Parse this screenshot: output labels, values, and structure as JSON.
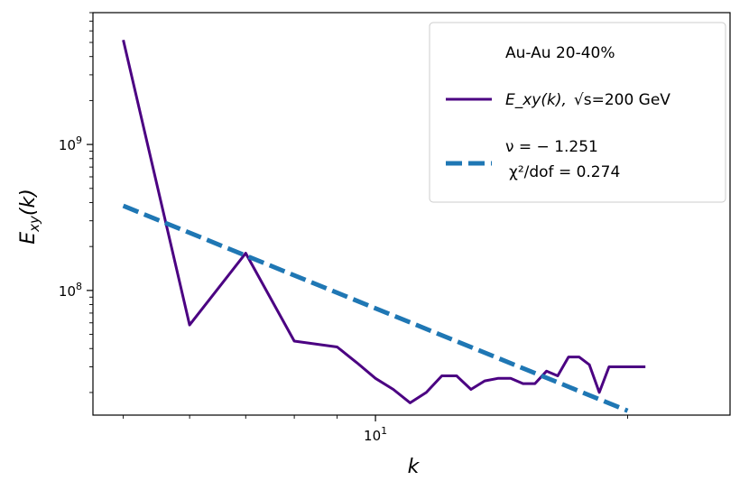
{
  "chart_data": {
    "type": "line",
    "xscale": "log",
    "yscale": "log",
    "xlabel": "k",
    "ylabel": "E_xy(k)",
    "xlim": [
      4.6,
      26.5
    ],
    "ylim": [
      14000000,
      8000000000
    ],
    "x_ticks": [
      {
        "value": 10,
        "mantissa": "10",
        "exp": "1"
      }
    ],
    "y_ticks": [
      {
        "value": 100000000,
        "mantissa": "10",
        "exp": "8"
      },
      {
        "value": 1000000000,
        "mantissa": "10",
        "exp": "9"
      }
    ],
    "grid": false,
    "legend_position": "top-right",
    "legend": {
      "title": "Au-Au  20-40%",
      "entries": [
        {
          "label_main": "E_xy(k),",
          "label_energy": "√s=200 GeV"
        },
        {
          "line1": "ν = − 1.251",
          "line2": "χ²/dof = 0.274"
        }
      ]
    },
    "colors": {
      "data": "#4b0082",
      "fit": "#1f77b4"
    },
    "series": [
      {
        "name": "E_xy(k),  √s=200 GeV",
        "style": "solid",
        "x": [
          5,
          6,
          7,
          8,
          9,
          9.5,
          10,
          10.5,
          11,
          11.5,
          12,
          12.5,
          13,
          13.5,
          14,
          14.5,
          15,
          15.5,
          16,
          16.5,
          17,
          17.5,
          18,
          18.5,
          19,
          19.5,
          20,
          20.5,
          21
        ],
        "y": [
          5200000000,
          58000000,
          180000000,
          45000000,
          41000000,
          32000000,
          25000000,
          21000000,
          17000000,
          20000000,
          26000000,
          26000000,
          21000000,
          24000000,
          25000000,
          25000000,
          23000000,
          23000000,
          28000000,
          26000000,
          35000000,
          35000000,
          31000000,
          20000000,
          30000000,
          30000000,
          30000000,
          30000000,
          30000000
        ]
      },
      {
        "name": "ν = − 1.251  χ²/dof = 0.274",
        "style": "dashed",
        "x": [
          5,
          20
        ],
        "y": [
          380000000,
          15000000
        ]
      }
    ]
  }
}
